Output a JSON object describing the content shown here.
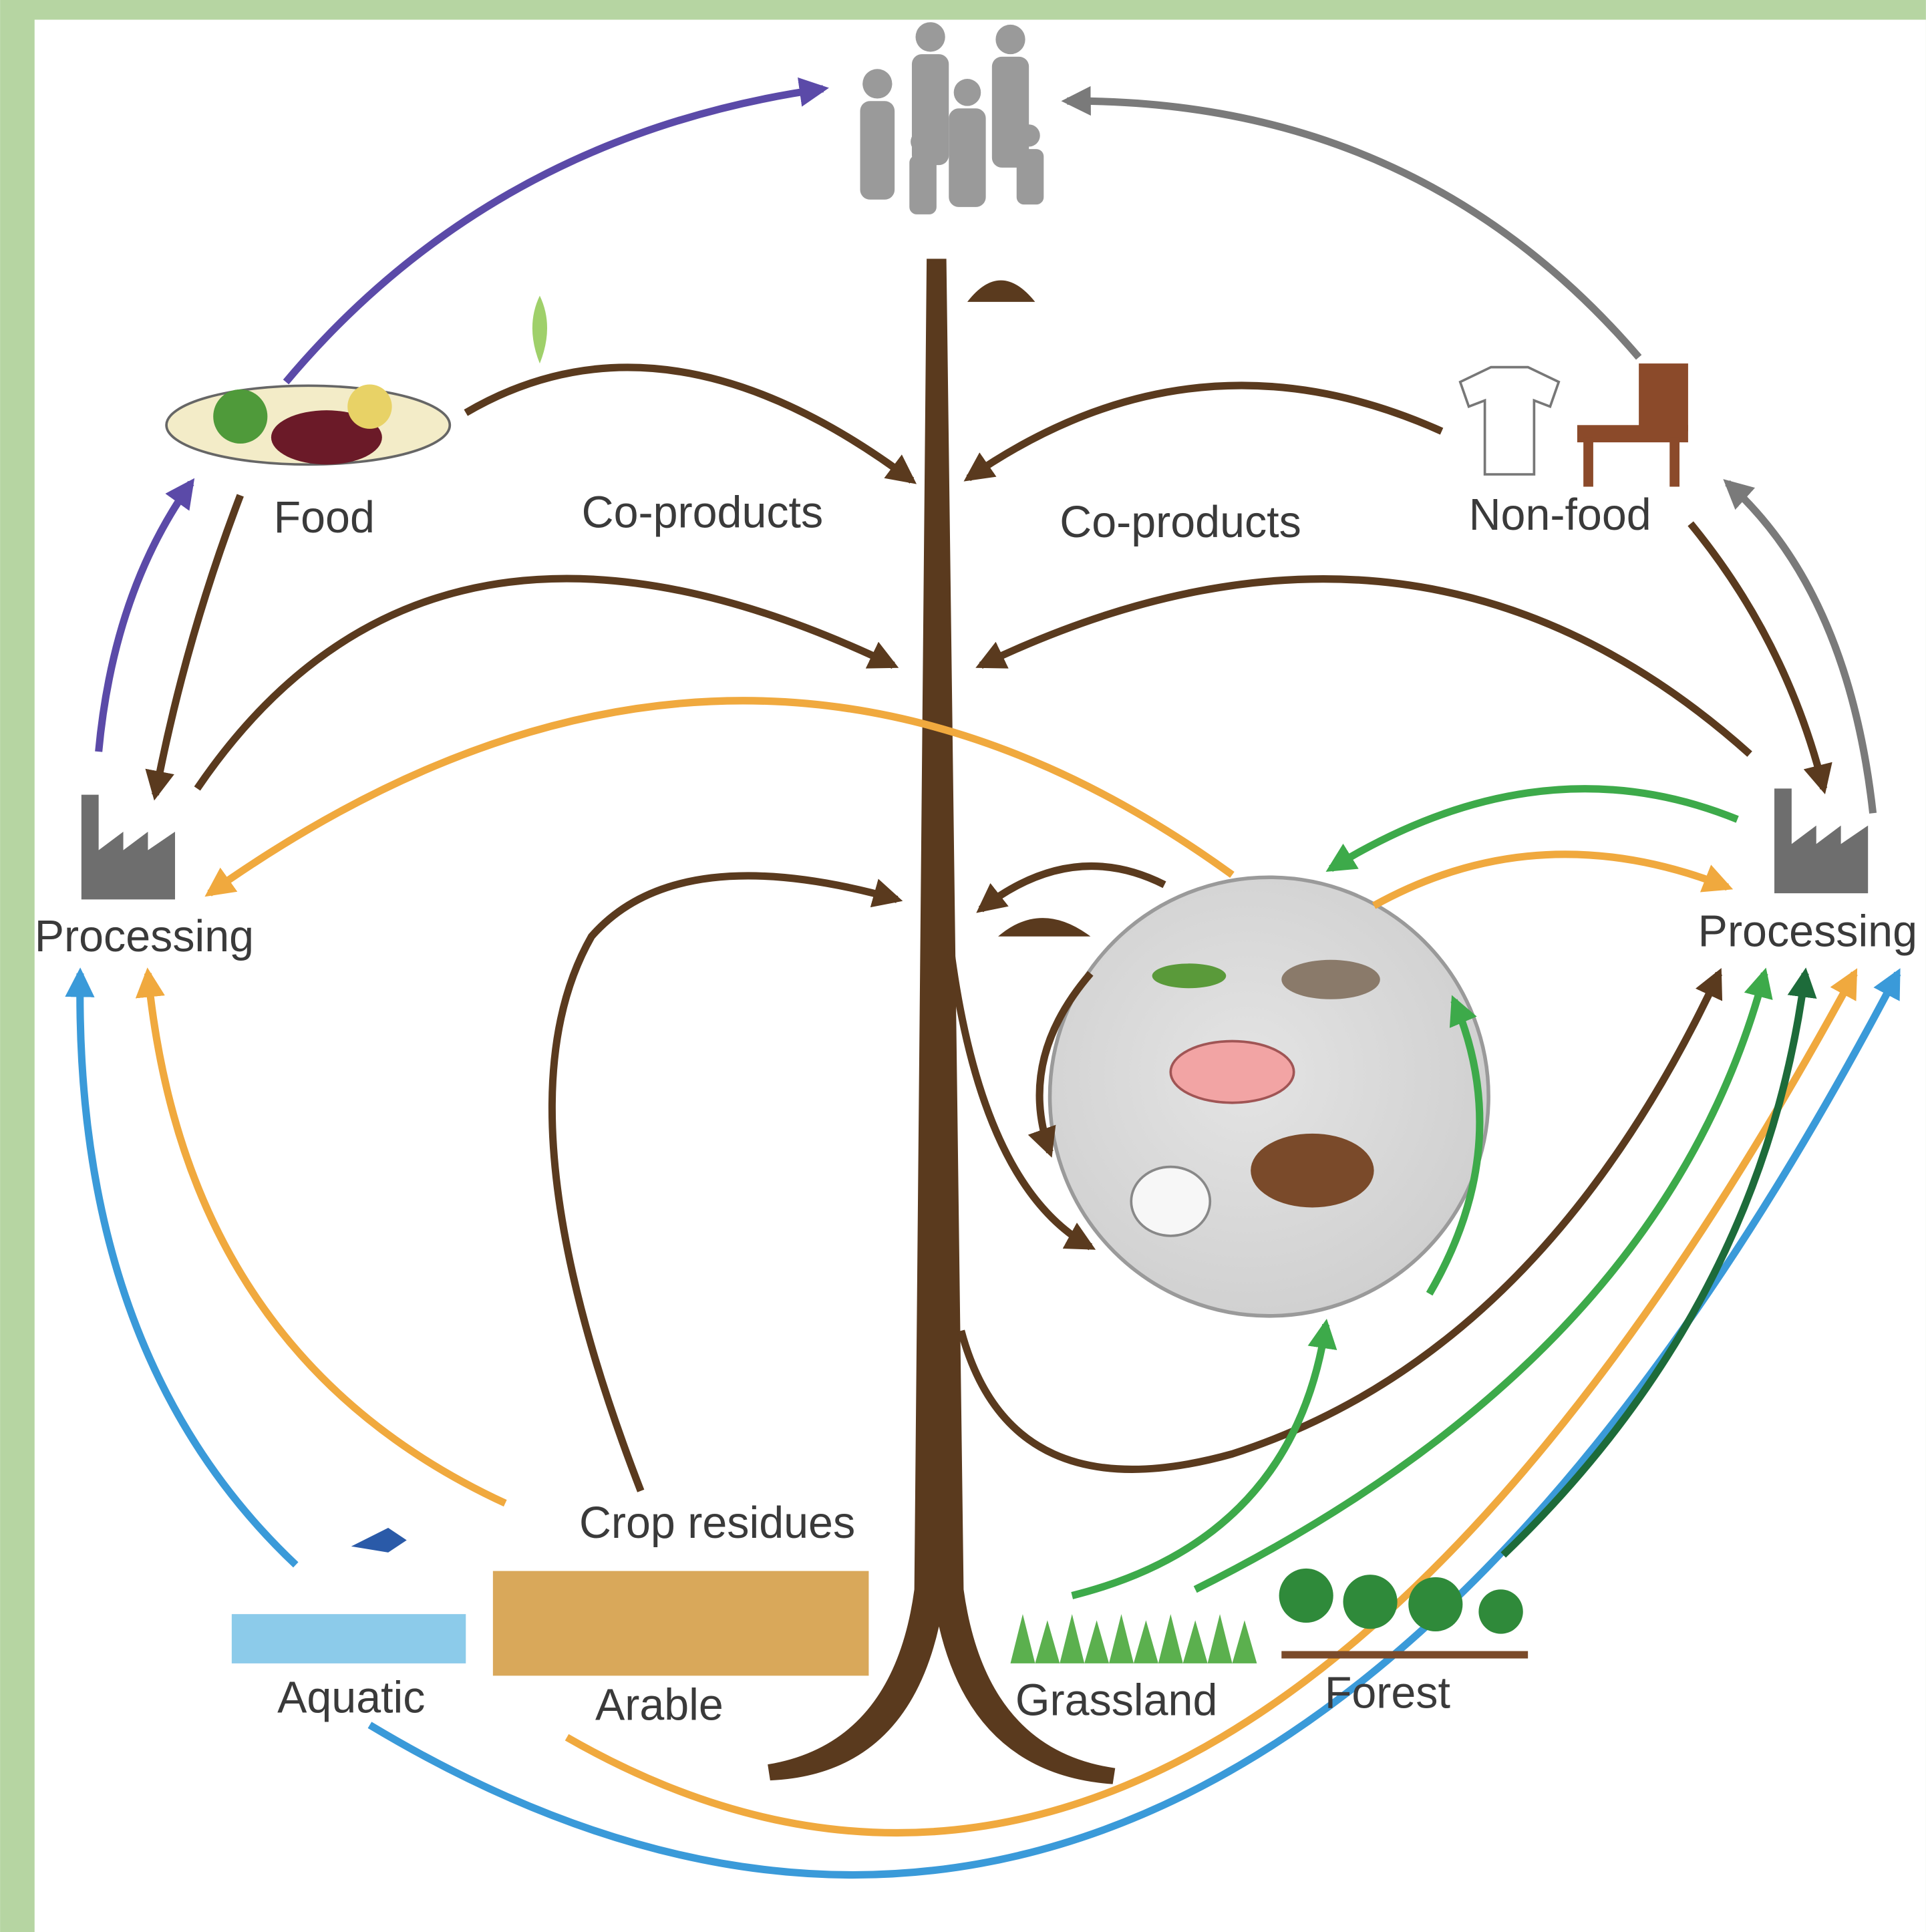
{
  "labels": {
    "food": "Food",
    "co_products_left": "Co-products",
    "co_products_right": "Co-products",
    "non_food": "Non-food",
    "processing_left": "Processing",
    "processing_right": "Processing",
    "crop_residues": "Crop residues",
    "aquatic": "Aquatic",
    "arable": "Arable",
    "grassland": "Grassland",
    "forest": "Forest"
  }
}
